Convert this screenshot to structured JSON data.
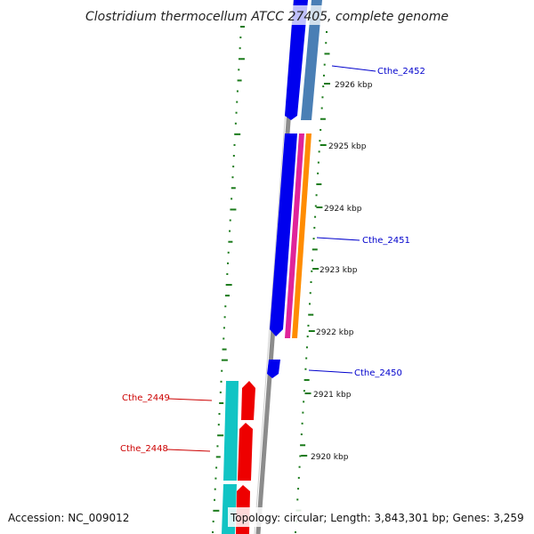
{
  "title": "Clostridium thermocellum ATCC 27405, complete genome",
  "accession": "Accession: NC_009012",
  "topology": "Topology: circular; Length: 3,843,301 bp; Genes: 3,259",
  "ticks": [
    "2926 kbp",
    "2925 kbp",
    "2924 kbp",
    "2923 kbp",
    "2922 kbp",
    "2921 kbp",
    "2920 kbp"
  ],
  "gene_labels": [
    {
      "text": "Cthe_2452",
      "strand": "forward"
    },
    {
      "text": "Cthe_2451",
      "strand": "forward"
    },
    {
      "text": "Cthe_2450",
      "strand": "forward"
    },
    {
      "text": "Cthe_2449",
      "strand": "reverse"
    },
    {
      "text": "Cthe_2448",
      "strand": "reverse"
    }
  ],
  "colors": {
    "forward_cds": "#0000ee",
    "reverse_cds": "#ee0000",
    "steelblue_feature": "#4a7fb5",
    "magenta_feature": "#e0249a",
    "orange_feature": "#ff8c00",
    "cyan_feature": "#11c4c4",
    "backbone": "#8c8c8c",
    "gc_track": "#1a7a1a",
    "forward_label": "#0000cc",
    "reverse_label": "#cc0000"
  }
}
